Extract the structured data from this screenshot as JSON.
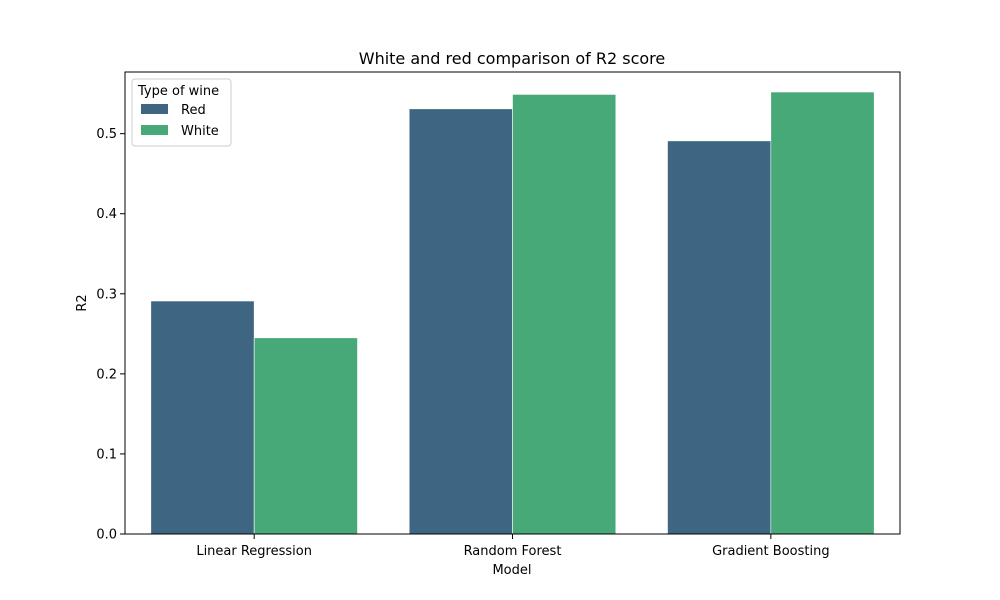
{
  "chart_data": {
    "type": "bar",
    "title": "White and red comparison of R2 score",
    "xlabel": "Model",
    "ylabel": "R2",
    "categories": [
      "Linear Regression",
      "Random Forest",
      "Gradient Boosting"
    ],
    "series": [
      {
        "name": "Red",
        "values": [
          0.291,
          0.531,
          0.491
        ],
        "color": "#3e6682"
      },
      {
        "name": "White",
        "values": [
          0.245,
          0.549,
          0.552
        ],
        "color": "#47a878"
      }
    ],
    "ylim": [
      0,
      0.577
    ],
    "yticks": [
      "0.0",
      "0.1",
      "0.2",
      "0.3",
      "0.4",
      "0.5"
    ],
    "legend": {
      "title": "Type of wine",
      "position": "top-left"
    },
    "grid": false
  }
}
